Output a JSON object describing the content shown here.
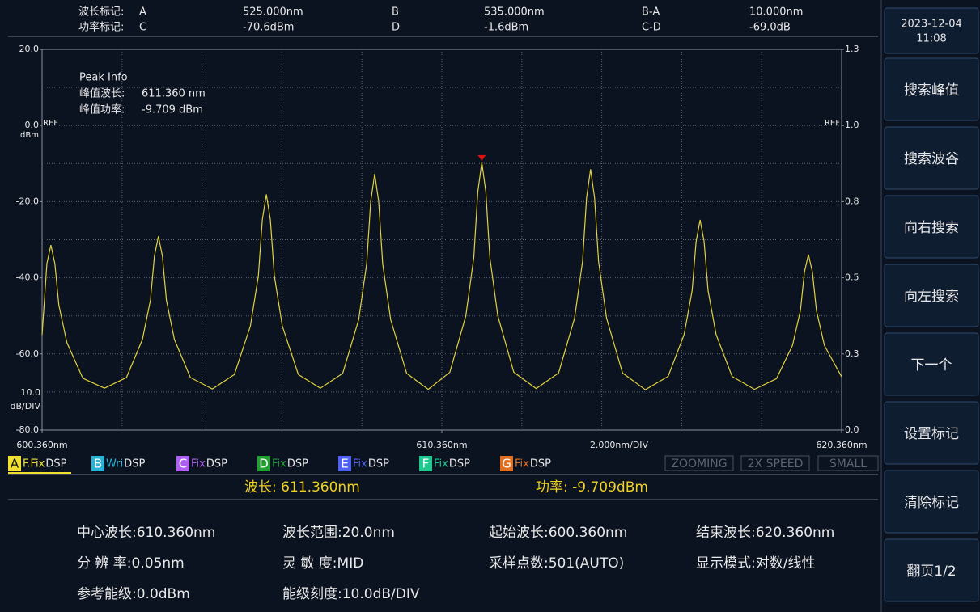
{
  "markers": {
    "rows": [
      [
        "波长标记:",
        "A",
        "525.000nm",
        "B",
        "535.000nm",
        "B-A",
        "10.000nm"
      ],
      [
        "功率标记:",
        "C",
        "-70.6dBm",
        "D",
        "-1.6dBm",
        "C-D",
        "-69.0dB"
      ]
    ]
  },
  "datetime": {
    "date": "2023-12-04",
    "time": "11:08"
  },
  "buttons": [
    "搜索峰值",
    "搜索波谷",
    "向右搜索",
    "向左搜索",
    "下一个",
    "设置标记",
    "清除标记",
    "翻页1/2"
  ],
  "chart_data": {
    "type": "line",
    "peak_info": {
      "title": "Peak Info",
      "rows": [
        [
          "峰值波长:",
          "611.360 nm"
        ],
        [
          "峰值功率:",
          "-9.709 dBm"
        ]
      ]
    },
    "ref_label": "REF",
    "y_unit": "dBm",
    "y_scale": [
      "10.0",
      "dB/DIV"
    ],
    "x_scale": "2.000nm/DIV",
    "xlim": [
      600.36,
      620.36
    ],
    "xticks": [
      {
        "value": 600.36,
        "label": "600.360nm"
      },
      {
        "value": 610.36,
        "label": "610.360nm"
      },
      {
        "value": 620.36,
        "label": "620.360nm"
      }
    ],
    "ylim": [
      -80,
      20
    ],
    "yticks": [
      {
        "value": 20,
        "label": "20.0"
      },
      {
        "value": 0,
        "label": "0.0"
      },
      {
        "value": -20,
        "label": "-20.0"
      },
      {
        "value": -40,
        "label": "-40.0"
      },
      {
        "value": -60,
        "label": "-60.0"
      },
      {
        "value": -80,
        "label": "-80.0"
      }
    ],
    "y2lim": [
      0,
      1.25
    ],
    "y2ticks": [
      {
        "value": 1.25,
        "label": "1.3"
      },
      {
        "value": 1,
        "label": "1.0"
      },
      {
        "value": 0.75,
        "label": "0.8"
      },
      {
        "value": 0.5,
        "label": "0.5"
      },
      {
        "value": 0.25,
        "label": "0.3"
      },
      {
        "value": 0,
        "label": "0.0"
      }
    ],
    "grid": true,
    "x": [
      600.36,
      600.48,
      600.58,
      600.68,
      600.78,
      600.98,
      601.38,
      601.92,
      602.47,
      602.87,
      603.07,
      603.17,
      603.27,
      603.37,
      603.47,
      603.67,
      604.07,
      604.62,
      605.17,
      605.57,
      605.77,
      605.87,
      605.97,
      606.07,
      606.17,
      606.37,
      606.77,
      607.32,
      607.88,
      608.28,
      608.48,
      608.58,
      608.68,
      608.78,
      608.88,
      609.08,
      609.48,
      610.02,
      610.56,
      610.96,
      611.16,
      611.26,
      611.36,
      611.46,
      611.56,
      611.76,
      612.16,
      612.72,
      613.28,
      613.68,
      613.88,
      613.98,
      614.08,
      614.18,
      614.28,
      614.48,
      614.88,
      615.45,
      616.02,
      616.42,
      616.62,
      616.72,
      616.82,
      616.92,
      617.02,
      617.22,
      617.62,
      618.18,
      618.73,
      619.13,
      619.33,
      619.43,
      619.53,
      619.63,
      619.73,
      619.93,
      620.36
    ],
    "series": [
      {
        "color": "#e2d23c",
        "values": [
          -55,
          -36.3,
          -31.4,
          -36.3,
          -47.2,
          -57,
          -66.4,
          -69,
          -66.2,
          -56.2,
          -45.9,
          -34.3,
          -29.1,
          -34.3,
          -45.9,
          -56.2,
          -66.2,
          -69.2,
          -65.4,
          -52.7,
          -39.5,
          -24.7,
          -18.1,
          -24.7,
          -39.5,
          -52.7,
          -65.4,
          -69,
          -65.1,
          -51,
          -36.3,
          -20,
          -12.7,
          -20,
          -36.3,
          -51,
          -65.1,
          -69.3,
          -64.8,
          -50,
          -34.6,
          -17.4,
          -9.7,
          -17.4,
          -34.6,
          -50,
          -64.8,
          -69.1,
          -65,
          -50.6,
          -35.7,
          -19,
          -11.5,
          -19,
          -35.7,
          -50.6,
          -65,
          -69.4,
          -65.9,
          -54.9,
          -43.4,
          -30.5,
          -24.8,
          -30.5,
          -43.4,
          -54.9,
          -65.9,
          -69.3,
          -66.5,
          -57.8,
          -48.6,
          -38.5,
          -33.9,
          -38.5,
          -48.6,
          -57.8,
          -66
        ]
      }
    ]
  },
  "traces": [
    {
      "letter": "A",
      "mode": "F.Fix",
      "label": "DSP",
      "color": "#f0e030"
    },
    {
      "letter": "B",
      "mode": "Wri",
      "label": "DSP",
      "color": "#28b4d8"
    },
    {
      "letter": "C",
      "mode": "Fix",
      "label": "DSP",
      "color": "#b060f0"
    },
    {
      "letter": "D",
      "mode": "Fix",
      "label": "DSP",
      "color": "#20a030"
    },
    {
      "letter": "E",
      "mode": "Fix",
      "label": "DSP",
      "color": "#5060f0"
    },
    {
      "letter": "F",
      "mode": "Fix",
      "label": "DSP",
      "color": "#20c890"
    },
    {
      "letter": "G",
      "mode": "Fix",
      "label": "DSP",
      "color": "#e07020"
    }
  ],
  "status": [
    "ZOOMING",
    "2X SPEED",
    "SMALL"
  ],
  "readout": {
    "wavelength": "波长: 611.360nm",
    "power": "功率: -9.709dBm"
  },
  "settings": [
    [
      "中心波长:610.360nm",
      "波长范围:20.0nm",
      "起始波长:600.360nm",
      "结束波长:620.360nm"
    ],
    [
      "分 辨 率:0.05nm",
      "灵 敏 度:MID",
      "采样点数:501(AUTO)",
      "显示模式:对数/线性"
    ],
    [
      "参考能级:0.0dBm",
      "能级刻度:10.0dB/DIV"
    ]
  ]
}
